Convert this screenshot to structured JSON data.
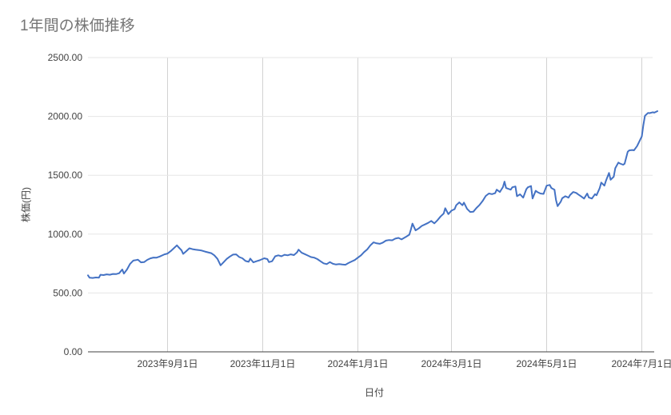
{
  "chart": {
    "title": "1年間の株価推移",
    "x_axis_title": "日付",
    "y_axis_title": "株価(円)",
    "colors": {
      "line": "#4472c4",
      "title_text": "#757575",
      "axis_text": "#424242",
      "h_gridline": "#e6e6e6",
      "v_gridline": "#d2d2d2",
      "axis_line": "#424242",
      "background": "#ffffff"
    }
  },
  "chart_data": {
    "type": "line",
    "title": "1年間の株価推移",
    "xlabel": "日付",
    "ylabel": "株価(円)",
    "ylim": [
      0,
      2500
    ],
    "grid": true,
    "legend": false,
    "y_tick_values": [
      2500,
      2000,
      1500,
      1000,
      500,
      0
    ],
    "y_tick_labels": [
      "2500.00",
      "2000.00",
      "1500.00",
      "1000.00",
      "500.00",
      "0.00"
    ],
    "x_range": [
      "2023-07-12",
      "2024-07-11"
    ],
    "x_ticks": [
      {
        "date": "2023-09-01",
        "label": "2023年9月1日"
      },
      {
        "date": "2023-11-01",
        "label": "2023年11月1日"
      },
      {
        "date": "2024-01-01",
        "label": "2024年1月1日"
      },
      {
        "date": "2024-03-01",
        "label": "2024年3月1日"
      },
      {
        "date": "2024-05-01",
        "label": "2024年5月1日"
      },
      {
        "date": "2024-07-01",
        "label": "2024年7月1日"
      }
    ],
    "series": [
      {
        "name": "株価",
        "color": "#4472c4",
        "points": [
          [
            "2023-07-12",
            650
          ],
          [
            "2023-07-13",
            630
          ],
          [
            "2023-07-15",
            628
          ],
          [
            "2023-07-17",
            632
          ],
          [
            "2023-07-19",
            630
          ],
          [
            "2023-07-20",
            655
          ],
          [
            "2023-07-22",
            652
          ],
          [
            "2023-07-24",
            658
          ],
          [
            "2023-07-26",
            655
          ],
          [
            "2023-07-28",
            662
          ],
          [
            "2023-07-30",
            660
          ],
          [
            "2023-08-01",
            668
          ],
          [
            "2023-08-03",
            700
          ],
          [
            "2023-08-04",
            665
          ],
          [
            "2023-08-06",
            700
          ],
          [
            "2023-08-08",
            748
          ],
          [
            "2023-08-10",
            775
          ],
          [
            "2023-08-12",
            780
          ],
          [
            "2023-08-13",
            783
          ],
          [
            "2023-08-15",
            760
          ],
          [
            "2023-08-17",
            762
          ],
          [
            "2023-08-19",
            781
          ],
          [
            "2023-08-21",
            794
          ],
          [
            "2023-08-23",
            801
          ],
          [
            "2023-08-25",
            800
          ],
          [
            "2023-08-27",
            810
          ],
          [
            "2023-08-30",
            828
          ],
          [
            "2023-09-01",
            835
          ],
          [
            "2023-09-03",
            855
          ],
          [
            "2023-09-05",
            880
          ],
          [
            "2023-09-07",
            905
          ],
          [
            "2023-09-08",
            890
          ],
          [
            "2023-09-10",
            862
          ],
          [
            "2023-09-11",
            832
          ],
          [
            "2023-09-13",
            855
          ],
          [
            "2023-09-15",
            880
          ],
          [
            "2023-09-17",
            872
          ],
          [
            "2023-09-19",
            868
          ],
          [
            "2023-09-21",
            865
          ],
          [
            "2023-09-23",
            860
          ],
          [
            "2023-09-25",
            852
          ],
          [
            "2023-09-27",
            845
          ],
          [
            "2023-09-29",
            838
          ],
          [
            "2023-10-01",
            820
          ],
          [
            "2023-10-03",
            790
          ],
          [
            "2023-10-05",
            735
          ],
          [
            "2023-10-07",
            762
          ],
          [
            "2023-10-09",
            790
          ],
          [
            "2023-10-11",
            810
          ],
          [
            "2023-10-13",
            826
          ],
          [
            "2023-10-15",
            828
          ],
          [
            "2023-10-17",
            805
          ],
          [
            "2023-10-19",
            795
          ],
          [
            "2023-10-21",
            772
          ],
          [
            "2023-10-23",
            765
          ],
          [
            "2023-10-24",
            792
          ],
          [
            "2023-10-26",
            760
          ],
          [
            "2023-10-28",
            770
          ],
          [
            "2023-10-30",
            778
          ],
          [
            "2023-11-02",
            795
          ],
          [
            "2023-11-04",
            788
          ],
          [
            "2023-11-05",
            762
          ],
          [
            "2023-11-07",
            770
          ],
          [
            "2023-11-09",
            812
          ],
          [
            "2023-11-11",
            820
          ],
          [
            "2023-11-13",
            812
          ],
          [
            "2023-11-15",
            825
          ],
          [
            "2023-11-17",
            820
          ],
          [
            "2023-11-19",
            828
          ],
          [
            "2023-11-21",
            822
          ],
          [
            "2023-11-23",
            845
          ],
          [
            "2023-11-24",
            868
          ],
          [
            "2023-11-26",
            842
          ],
          [
            "2023-11-28",
            830
          ],
          [
            "2023-11-30",
            818
          ],
          [
            "2023-12-02",
            805
          ],
          [
            "2023-12-04",
            800
          ],
          [
            "2023-12-06",
            788
          ],
          [
            "2023-12-08",
            770
          ],
          [
            "2023-12-10",
            752
          ],
          [
            "2023-12-12",
            745
          ],
          [
            "2023-12-14",
            762
          ],
          [
            "2023-12-16",
            748
          ],
          [
            "2023-12-18",
            742
          ],
          [
            "2023-12-20",
            745
          ],
          [
            "2023-12-22",
            742
          ],
          [
            "2023-12-24",
            740
          ],
          [
            "2023-12-26",
            755
          ],
          [
            "2023-12-28",
            768
          ],
          [
            "2023-12-30",
            780
          ],
          [
            "2024-01-01",
            800
          ],
          [
            "2024-01-03",
            820
          ],
          [
            "2024-01-05",
            848
          ],
          [
            "2024-01-07",
            870
          ],
          [
            "2024-01-09",
            905
          ],
          [
            "2024-01-11",
            930
          ],
          [
            "2024-01-13",
            922
          ],
          [
            "2024-01-15",
            918
          ],
          [
            "2024-01-17",
            928
          ],
          [
            "2024-01-19",
            945
          ],
          [
            "2024-01-21",
            950
          ],
          [
            "2024-01-23",
            948
          ],
          [
            "2024-01-25",
            962
          ],
          [
            "2024-01-27",
            968
          ],
          [
            "2024-01-29",
            955
          ],
          [
            "2024-02-01",
            978
          ],
          [
            "2024-02-03",
            995
          ],
          [
            "2024-02-04",
            1040
          ],
          [
            "2024-02-05",
            1090
          ],
          [
            "2024-02-07",
            1032
          ],
          [
            "2024-02-09",
            1048
          ],
          [
            "2024-02-11",
            1070
          ],
          [
            "2024-02-13",
            1082
          ],
          [
            "2024-02-15",
            1095
          ],
          [
            "2024-02-17",
            1112
          ],
          [
            "2024-02-19",
            1092
          ],
          [
            "2024-02-21",
            1118
          ],
          [
            "2024-02-23",
            1150
          ],
          [
            "2024-02-25",
            1175
          ],
          [
            "2024-02-26",
            1220
          ],
          [
            "2024-02-28",
            1170
          ],
          [
            "2024-03-01",
            1200
          ],
          [
            "2024-03-03",
            1212
          ],
          [
            "2024-03-04",
            1245
          ],
          [
            "2024-03-06",
            1270
          ],
          [
            "2024-03-08",
            1245
          ],
          [
            "2024-03-09",
            1268
          ],
          [
            "2024-03-11",
            1215
          ],
          [
            "2024-03-13",
            1188
          ],
          [
            "2024-03-15",
            1190
          ],
          [
            "2024-03-17",
            1222
          ],
          [
            "2024-03-19",
            1248
          ],
          [
            "2024-03-21",
            1282
          ],
          [
            "2024-03-23",
            1325
          ],
          [
            "2024-03-25",
            1345
          ],
          [
            "2024-03-27",
            1340
          ],
          [
            "2024-03-29",
            1348
          ],
          [
            "2024-03-30",
            1378
          ],
          [
            "2024-04-01",
            1358
          ],
          [
            "2024-04-03",
            1400
          ],
          [
            "2024-04-04",
            1446
          ],
          [
            "2024-04-05",
            1392
          ],
          [
            "2024-04-08",
            1378
          ],
          [
            "2024-04-09",
            1398
          ],
          [
            "2024-04-11",
            1405
          ],
          [
            "2024-04-12",
            1322
          ],
          [
            "2024-04-14",
            1338
          ],
          [
            "2024-04-16",
            1310
          ],
          [
            "2024-04-18",
            1382
          ],
          [
            "2024-04-19",
            1398
          ],
          [
            "2024-04-21",
            1408
          ],
          [
            "2024-04-22",
            1302
          ],
          [
            "2024-04-24",
            1368
          ],
          [
            "2024-04-25",
            1358
          ],
          [
            "2024-04-27",
            1345
          ],
          [
            "2024-04-29",
            1342
          ],
          [
            "2024-05-01",
            1412
          ],
          [
            "2024-05-03",
            1418
          ],
          [
            "2024-05-04",
            1392
          ],
          [
            "2024-05-06",
            1378
          ],
          [
            "2024-05-07",
            1290
          ],
          [
            "2024-05-08",
            1238
          ],
          [
            "2024-05-10",
            1275
          ],
          [
            "2024-05-11",
            1305
          ],
          [
            "2024-05-13",
            1322
          ],
          [
            "2024-05-15",
            1310
          ],
          [
            "2024-05-16",
            1332
          ],
          [
            "2024-05-18",
            1358
          ],
          [
            "2024-05-20",
            1350
          ],
          [
            "2024-05-21",
            1340
          ],
          [
            "2024-05-23",
            1322
          ],
          [
            "2024-05-25",
            1302
          ],
          [
            "2024-05-27",
            1345
          ],
          [
            "2024-05-28",
            1312
          ],
          [
            "2024-05-30",
            1302
          ],
          [
            "2024-06-01",
            1340
          ],
          [
            "2024-06-02",
            1330
          ],
          [
            "2024-06-04",
            1390
          ],
          [
            "2024-06-05",
            1438
          ],
          [
            "2024-06-07",
            1412
          ],
          [
            "2024-06-08",
            1452
          ],
          [
            "2024-06-10",
            1520
          ],
          [
            "2024-06-11",
            1462
          ],
          [
            "2024-06-13",
            1488
          ],
          [
            "2024-06-14",
            1560
          ],
          [
            "2024-06-16",
            1608
          ],
          [
            "2024-06-17",
            1600
          ],
          [
            "2024-06-19",
            1590
          ],
          [
            "2024-06-20",
            1598
          ],
          [
            "2024-06-22",
            1700
          ],
          [
            "2024-06-23",
            1712
          ],
          [
            "2024-06-25",
            1715
          ],
          [
            "2024-06-26",
            1712
          ],
          [
            "2024-06-28",
            1748
          ],
          [
            "2024-07-01",
            1830
          ],
          [
            "2024-07-02",
            1925
          ],
          [
            "2024-07-03",
            2005
          ],
          [
            "2024-07-05",
            2030
          ],
          [
            "2024-07-06",
            2028
          ],
          [
            "2024-07-08",
            2035
          ],
          [
            "2024-07-09",
            2032
          ],
          [
            "2024-07-11",
            2045
          ]
        ]
      }
    ]
  }
}
